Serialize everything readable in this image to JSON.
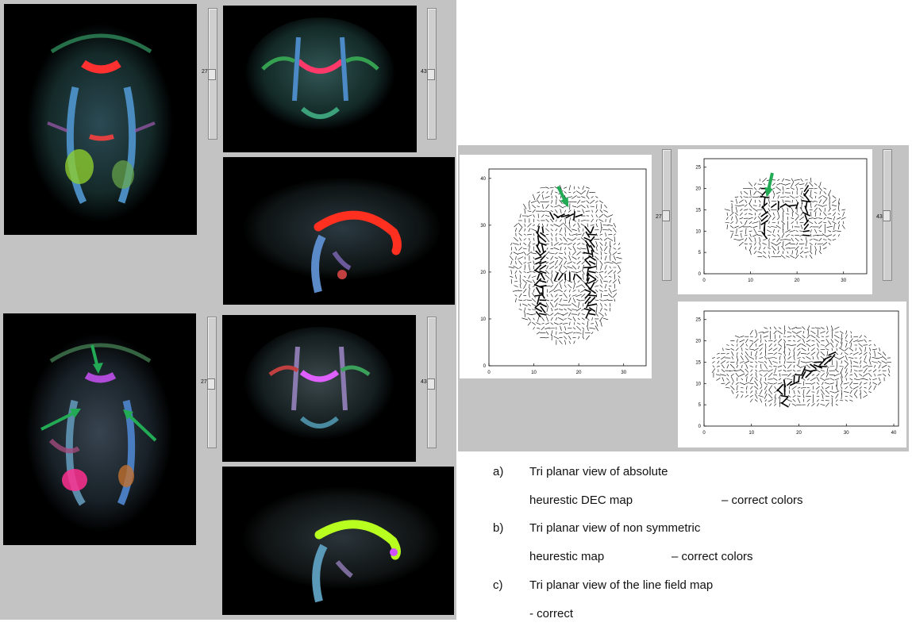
{
  "sliders": {
    "axial_value": "27",
    "coronal_value": "43"
  },
  "plots": {
    "axial_y_ticks": [
      "0",
      "10",
      "20",
      "30",
      "40"
    ],
    "axial_x_ticks": [
      "0",
      "10",
      "20",
      "30"
    ],
    "coronal_y_ticks": [
      "0",
      "5",
      "10",
      "15",
      "20",
      "25"
    ],
    "coronal_x_ticks": [
      "0",
      "10",
      "20",
      "30"
    ],
    "sagittal_y_ticks": [
      "0",
      "5",
      "10",
      "15",
      "20",
      "25"
    ],
    "sagittal_x_ticks": [
      "0",
      "10",
      "20",
      "30",
      "40"
    ]
  },
  "colors": {
    "arrow": "#22aa55",
    "panel_bg": "#c3c3c3"
  },
  "captions": {
    "a_marker": "a)",
    "a_line1": "Tri planar view of absolute",
    "a_line2_left": "heurestic  DEC map",
    "a_line2_right": "–  correct colors",
    "b_marker": "b)",
    "b_line1": "Tri planar view of non symmetric",
    "b_line2_left": "heurestic map",
    "b_line2_right": "–  correct colors",
    "c_marker": "c)",
    "c_line1": "Tri planar view of the line field map",
    "c_line2": "-  correct"
  }
}
